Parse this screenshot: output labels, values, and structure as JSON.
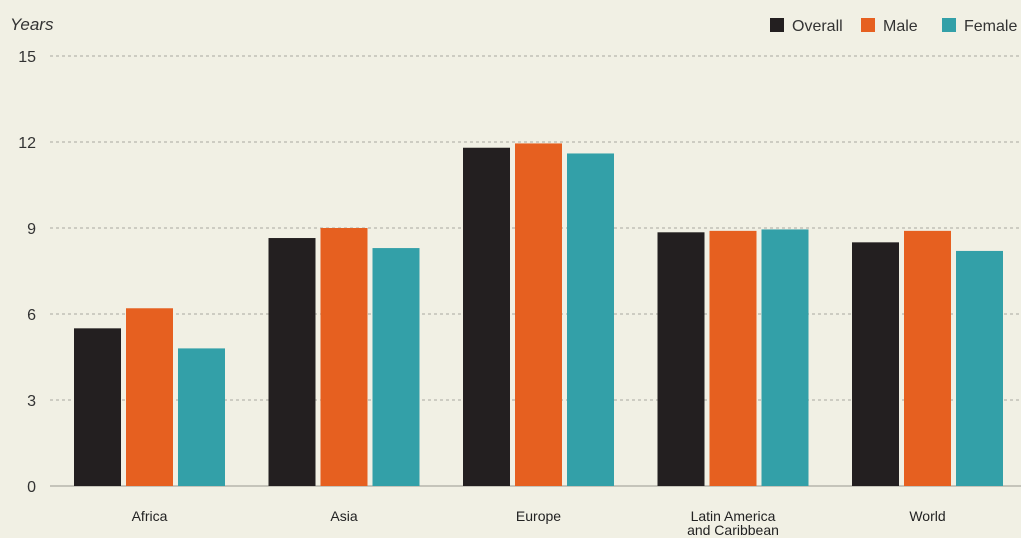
{
  "chart_data": {
    "type": "bar",
    "ylabel": "Years",
    "xlabel": "",
    "title": "",
    "ylim": [
      0,
      15
    ],
    "yticks": [
      0,
      3,
      6,
      9,
      12,
      15
    ],
    "grid": true,
    "legend_position": "top-right",
    "categories": [
      [
        "Africa"
      ],
      [
        "Asia"
      ],
      [
        "Europe"
      ],
      [
        "Latin America",
        "and Caribbean"
      ],
      [
        "World"
      ]
    ],
    "series": [
      {
        "name": "Overall",
        "color": "#231f20",
        "values": [
          5.5,
          8.65,
          11.8,
          8.85,
          8.5
        ]
      },
      {
        "name": "Male",
        "color": "#e66020",
        "values": [
          6.2,
          9.0,
          11.95,
          8.9,
          8.9
        ]
      },
      {
        "name": "Female",
        "color": "#33a0a8",
        "values": [
          4.8,
          8.3,
          11.6,
          8.95,
          8.2
        ]
      }
    ]
  }
}
